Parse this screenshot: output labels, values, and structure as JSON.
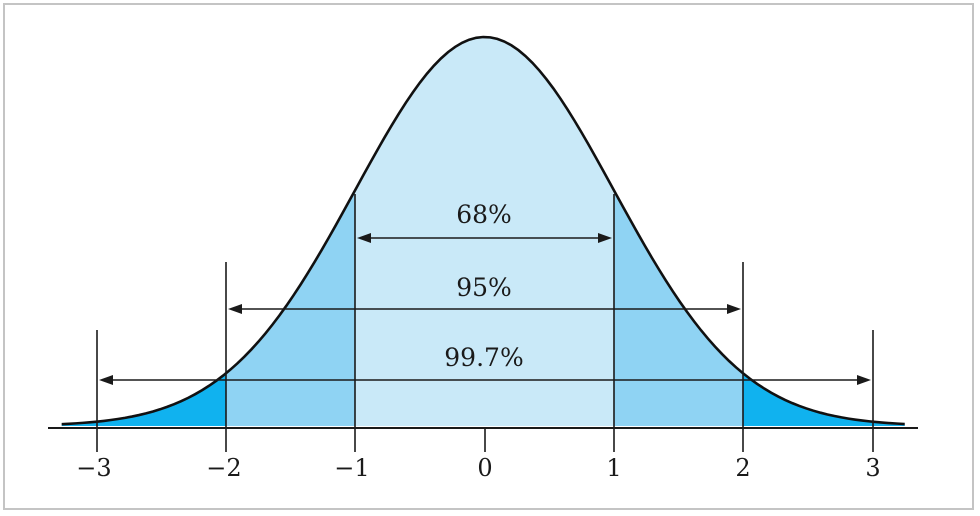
{
  "figure": {
    "percent_labels": {
      "one_sd": "68%",
      "two_sd": "95%",
      "three_sd": "99.7%"
    },
    "axis_ticks": [
      "−3",
      "−2",
      "−1",
      "0",
      "1",
      "2",
      "3"
    ],
    "colors": {
      "curve_stroke": "#111111",
      "within_1sd_fill": "#c9e9f8",
      "between_1_2sd_fill": "#8fd3f3",
      "beyond_2sd_fill": "#10b2ef"
    }
  }
}
